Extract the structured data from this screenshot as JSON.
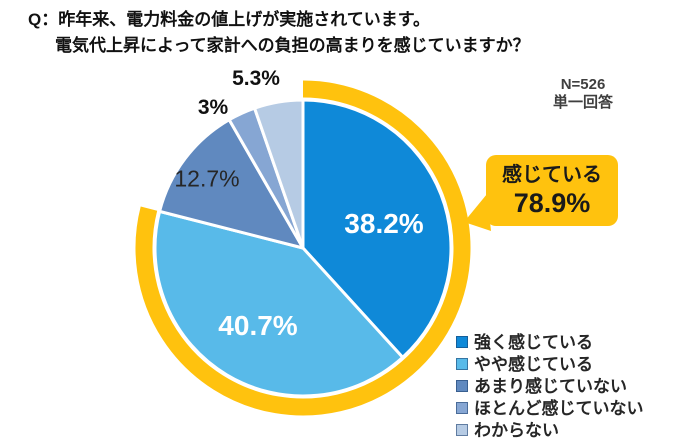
{
  "title": {
    "line1": "Q：昨年来、電力料金の値上げが実施されています。",
    "line2": "電気代上昇によって家計への負担の高まりを感じていますか？"
  },
  "meta": {
    "sample": "N=526",
    "answer_type": "単一回答"
  },
  "callout": {
    "label": "感じている",
    "value": "78.9%"
  },
  "chart_data": {
    "type": "pie",
    "unit": "%",
    "title": "電気代上昇による家計への負担の高まりを感じているか",
    "start_angle_deg": 0,
    "direction": "clockwise",
    "categories": [
      "強く感じている",
      "やや感じている",
      "あまり感じていない",
      "ほとんど感じていない",
      "わからない"
    ],
    "values": [
      38.2,
      40.7,
      12.7,
      3,
      5.3
    ],
    "segments": [
      {
        "label": "強く感じている",
        "value_pct": 38.2,
        "display": "38.2%",
        "color": "#0F89D8",
        "label_inside": true
      },
      {
        "label": "やや感じている",
        "value_pct": 40.7,
        "display": "40.7%",
        "color": "#58BAE9",
        "label_inside": true
      },
      {
        "label": "あまり感じていない",
        "value_pct": 12.7,
        "display": "12.7%",
        "color": "#6089BF",
        "label_inside": false
      },
      {
        "label": "ほとんど感じていない",
        "value_pct": 3.0,
        "display": "3%",
        "color": "#86A6D3",
        "label_inside": false
      },
      {
        "label": "わからない",
        "value_pct": 5.3,
        "display": "5.3%",
        "color": "#B6CBE4",
        "label_inside": false
      }
    ],
    "highlight": {
      "label": "感じている",
      "value_pct": 78.9,
      "covers": [
        "強く感じている",
        "やや感じている"
      ],
      "ring_color": "#FFC20E"
    },
    "legend_position": "bottom-right",
    "slice_border_color": "#FFFFFF"
  },
  "colors": {
    "highlight_yellow": "#FFC20E",
    "slice_border": "#FFFFFF",
    "inside_label": "#FFFFFF",
    "outside_label": "#111111"
  }
}
